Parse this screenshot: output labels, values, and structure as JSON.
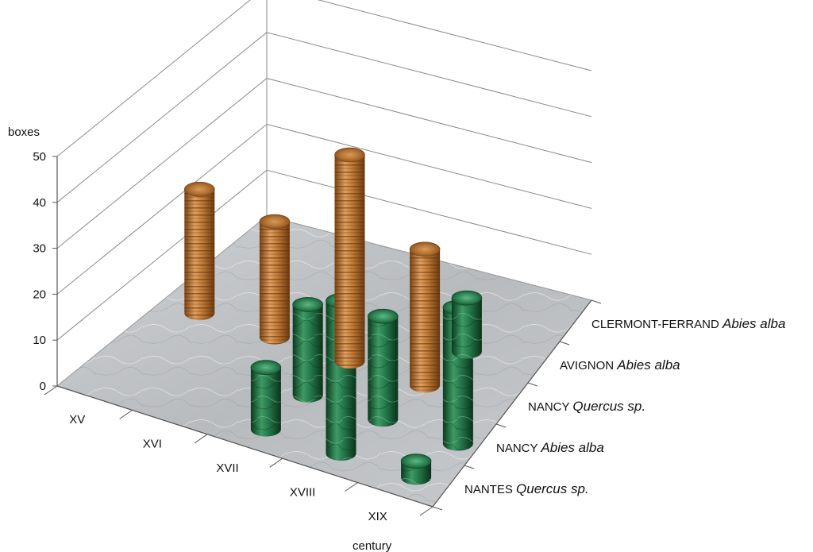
{
  "chart_data": {
    "type": "bar",
    "variant": "3d-cylinder",
    "ylabel": "boxes",
    "xlabel": "century",
    "ylim": [
      0,
      50
    ],
    "yticks": [
      0,
      10,
      20,
      30,
      40,
      50
    ],
    "categories": [
      "XV",
      "XVI",
      "XVII",
      "XVIII",
      "XIX"
    ],
    "series": [
      {
        "name": "NANTES Quercus sp.",
        "site": "NANTES",
        "species": "Quercus sp.",
        "color": "#b86f2e",
        "values": [
          null,
          null,
          null,
          null,
          null
        ]
      },
      {
        "name": "NANCY Abies alba",
        "site": "NANCY",
        "species": "Abies alba",
        "color": "#1f6b3c",
        "values": [
          null,
          null,
          null,
          13,
          null
        ]
      },
      {
        "name": "NANCY Quercus sp.",
        "site": "NANCY",
        "species": "Quercus sp.",
        "color": "#b86f2e",
        "values": [
          30,
          28,
          50,
          33,
          null
        ]
      },
      {
        "name": "AVIGNON Abies alba",
        "site": "AVIGNON",
        "species": "Abies alba",
        "color": "#1f6b3c",
        "values": [
          null,
          null,
          22,
          25,
          33
        ]
      },
      {
        "name": "CLERMONT-FERRAND Abies alba",
        "site": "CLERMONT-FERRAND",
        "species": "Abies alba",
        "color": "#1f6b3c",
        "values": [
          null,
          null,
          15,
          37,
          4
        ]
      }
    ]
  }
}
